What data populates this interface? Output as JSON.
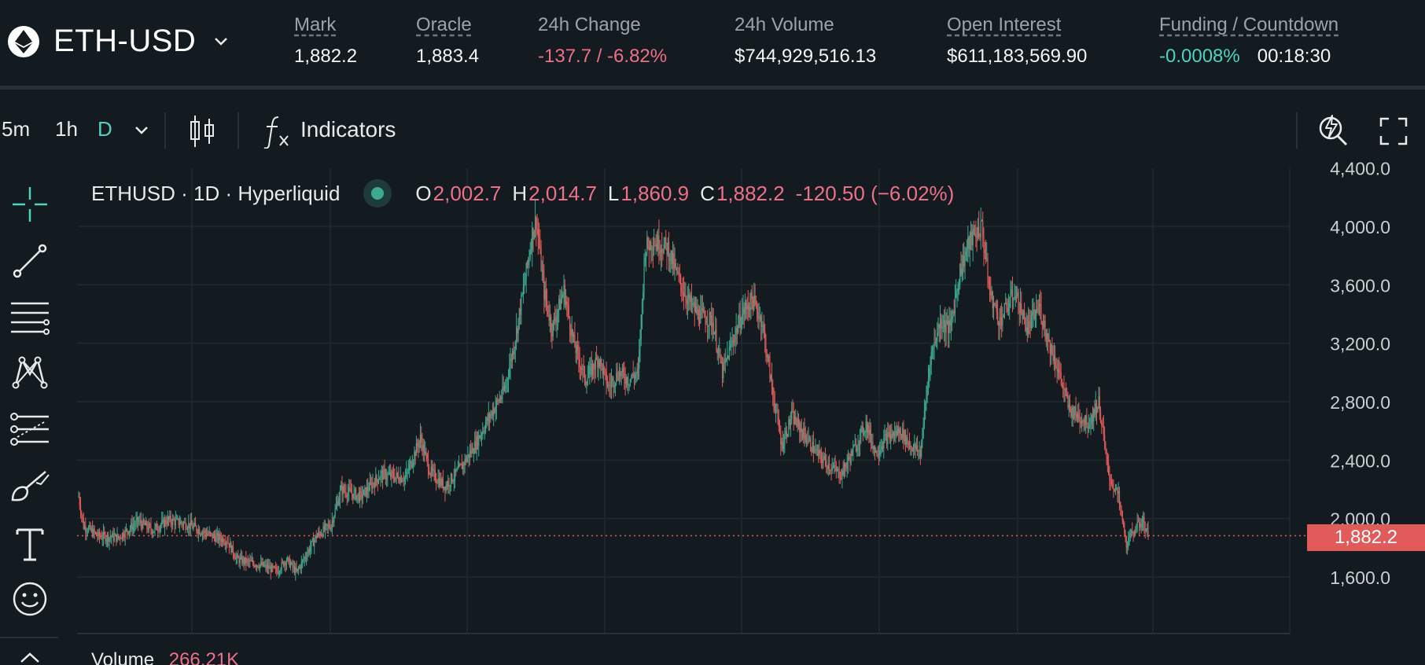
{
  "header": {
    "symbol": "ETH-USD",
    "stats": [
      {
        "label": "Mark",
        "value": "1,882.2"
      },
      {
        "label": "Oracle",
        "value": "1,883.4"
      },
      {
        "label": "24h Change",
        "value": "-137.7 / -6.82%"
      },
      {
        "label": "24h Volume",
        "value": "$744,929,516.13"
      },
      {
        "label": "Open Interest",
        "value": "$611,183,569.90"
      },
      {
        "label": "Funding / Countdown",
        "funding": "-0.0008%",
        "countdown": "00:18:30"
      }
    ]
  },
  "toolbar": {
    "timeframes": [
      "5m",
      "1h",
      "D"
    ],
    "active_timeframe": "D",
    "indicators_label": "Indicators"
  },
  "legend": {
    "source": "ETHUSD · 1D · Hyperliquid",
    "o_label": "O",
    "o": "2,002.7",
    "h_label": "H",
    "h": "2,014.7",
    "l_label": "L",
    "l": "1,860.9",
    "c_label": "C",
    "c": "1,882.2",
    "change": "-120.50 (−6.02%)"
  },
  "current_price": "1,882.2",
  "volume": {
    "label": "Volume",
    "value": "266.21K"
  },
  "colors": {
    "up": "#3ba88f",
    "down": "#e15b5b",
    "accent": "#50d2c1",
    "background": "#131b20",
    "grid": "#1f2a30"
  },
  "chart_data": {
    "type": "candlestick",
    "y_ticks": [
      "4,400.0",
      "4,000.0",
      "3,600.0",
      "3,200.0",
      "2,800.0",
      "2,400.0",
      "2,000.0",
      "1,600.0"
    ],
    "ylim": [
      1500,
      4400
    ],
    "current_value": 1882.2,
    "close_path": [
      [
        0,
        2150
      ],
      [
        5,
        1950
      ],
      [
        20,
        1880
      ],
      [
        40,
        1870
      ],
      [
        60,
        1980
      ],
      [
        75,
        1920
      ],
      [
        90,
        1990
      ],
      [
        110,
        1960
      ],
      [
        135,
        1880
      ],
      [
        150,
        1850
      ],
      [
        160,
        1720
      ],
      [
        185,
        1680
      ],
      [
        200,
        1640
      ],
      [
        210,
        1720
      ],
      [
        220,
        1630
      ],
      [
        240,
        1880
      ],
      [
        255,
        1960
      ],
      [
        265,
        2200
      ],
      [
        285,
        2150
      ],
      [
        305,
        2300
      ],
      [
        330,
        2280
      ],
      [
        345,
        2550
      ],
      [
        355,
        2320
      ],
      [
        370,
        2220
      ],
      [
        385,
        2340
      ],
      [
        400,
        2500
      ],
      [
        415,
        2700
      ],
      [
        430,
        2880
      ],
      [
        440,
        3200
      ],
      [
        450,
        3600
      ],
      [
        458,
        3950
      ],
      [
        462,
        4050
      ],
      [
        470,
        3550
      ],
      [
        478,
        3300
      ],
      [
        490,
        3560
      ],
      [
        500,
        3200
      ],
      [
        512,
        2950
      ],
      [
        525,
        3100
      ],
      [
        535,
        2900
      ],
      [
        545,
        3000
      ],
      [
        555,
        2950
      ],
      [
        565,
        3000
      ],
      [
        572,
        3850
      ],
      [
        580,
        3900
      ],
      [
        595,
        3850
      ],
      [
        605,
        3650
      ],
      [
        615,
        3500
      ],
      [
        625,
        3400
      ],
      [
        640,
        3350
      ],
      [
        650,
        3000
      ],
      [
        662,
        3250
      ],
      [
        670,
        3400
      ],
      [
        680,
        3500
      ],
      [
        690,
        3350
      ],
      [
        700,
        2900
      ],
      [
        710,
        2500
      ],
      [
        720,
        2700
      ],
      [
        730,
        2600
      ],
      [
        745,
        2450
      ],
      [
        760,
        2350
      ],
      [
        770,
        2300
      ],
      [
        785,
        2500
      ],
      [
        795,
        2650
      ],
      [
        805,
        2450
      ],
      [
        815,
        2550
      ],
      [
        830,
        2600
      ],
      [
        840,
        2500
      ],
      [
        850,
        2450
      ],
      [
        860,
        3100
      ],
      [
        870,
        3350
      ],
      [
        880,
        3300
      ],
      [
        890,
        3700
      ],
      [
        900,
        3900
      ],
      [
        912,
        4000
      ],
      [
        920,
        3550
      ],
      [
        930,
        3350
      ],
      [
        945,
        3550
      ],
      [
        958,
        3300
      ],
      [
        970,
        3450
      ],
      [
        980,
        3200
      ],
      [
        990,
        3000
      ],
      [
        1000,
        2750
      ],
      [
        1010,
        2700
      ],
      [
        1020,
        2650
      ],
      [
        1030,
        2800
      ],
      [
        1040,
        2300
      ],
      [
        1050,
        2150
      ],
      [
        1058,
        1820
      ],
      [
        1066,
        1930
      ],
      [
        1075,
        1980
      ],
      [
        1080,
        1880
      ]
    ]
  }
}
